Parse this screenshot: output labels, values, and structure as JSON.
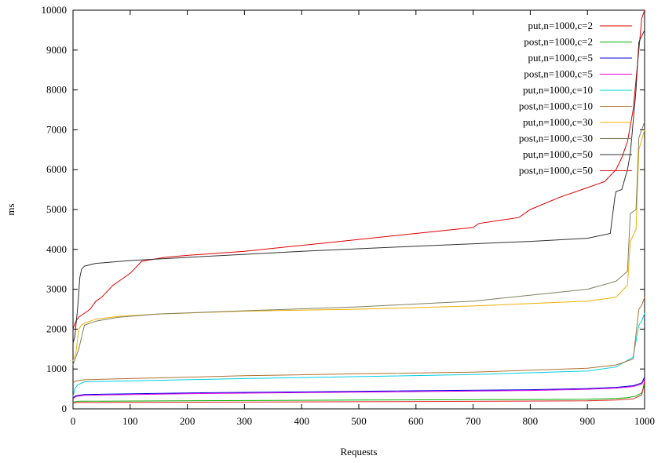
{
  "chart_data": {
    "type": "line",
    "title": "",
    "xlabel": "Requests",
    "ylabel": "ms",
    "xlim": [
      0,
      1000
    ],
    "ylim": [
      0,
      10000
    ],
    "xticks": [
      0,
      100,
      200,
      300,
      400,
      500,
      600,
      700,
      800,
      900,
      1000
    ],
    "yticks": [
      0,
      1000,
      2000,
      3000,
      4000,
      5000,
      6000,
      7000,
      8000,
      9000,
      10000
    ],
    "grid": false,
    "legend_position": "top-right",
    "series": [
      {
        "name": "put,n=1000,c=2",
        "color": "#e00000",
        "x": [
          0,
          5,
          10,
          20,
          30,
          40,
          50,
          70,
          90,
          100,
          120,
          140,
          160,
          200,
          300,
          400,
          500,
          600,
          700,
          710,
          780,
          800,
          850,
          900,
          930,
          950,
          960,
          970,
          980,
          990,
          995,
          1000
        ],
        "y": [
          2000,
          2200,
          2300,
          2400,
          2500,
          2700,
          2800,
          3100,
          3300,
          3400,
          3700,
          3750,
          3800,
          3850,
          3950,
          4100,
          4250,
          4400,
          4550,
          4650,
          4800,
          5000,
          5300,
          5550,
          5700,
          6000,
          6300,
          6700,
          7500,
          9000,
          9800,
          10000
        ]
      },
      {
        "name": "post,n=1000,c=2",
        "color": "#00b000",
        "x": [
          0,
          10,
          500,
          900,
          950,
          970,
          985,
          995,
          1000
        ],
        "y": [
          170,
          190,
          220,
          240,
          260,
          280,
          320,
          400,
          600
        ]
      },
      {
        "name": "put,n=1000,c=5",
        "color": "#0000e0",
        "x": [
          0,
          5,
          20,
          200,
          500,
          800,
          900,
          950,
          980,
          995,
          1000
        ],
        "y": [
          280,
          330,
          360,
          400,
          440,
          480,
          510,
          540,
          580,
          650,
          800
        ]
      },
      {
        "name": "post,n=1000,c=5",
        "color": "#e000e0",
        "x": [
          0,
          5,
          20,
          200,
          500,
          800,
          900,
          950,
          980,
          995,
          1000
        ],
        "y": [
          260,
          310,
          340,
          380,
          420,
          460,
          490,
          520,
          560,
          620,
          750
        ]
      },
      {
        "name": "put,n=1000,c=10",
        "color": "#00d0e0",
        "x": [
          0,
          3,
          8,
          20,
          100,
          300,
          500,
          700,
          900,
          950,
          980,
          990,
          995,
          1000
        ],
        "y": [
          300,
          500,
          600,
          680,
          700,
          760,
          810,
          860,
          950,
          1050,
          1300,
          2100,
          2200,
          2400
        ]
      },
      {
        "name": "post,n=1000,c=10",
        "color": "#b07030",
        "x": [
          0,
          5,
          20,
          100,
          300,
          500,
          700,
          900,
          950,
          980,
          990,
          995,
          1000
        ],
        "y": [
          650,
          700,
          730,
          760,
          830,
          880,
          920,
          1020,
          1100,
          1250,
          2500,
          2600,
          2800
        ]
      },
      {
        "name": "put,n=1000,c=30",
        "color": "#f0b000",
        "x": [
          0,
          5,
          10,
          15,
          20,
          40,
          80,
          150,
          300,
          500,
          700,
          900,
          950,
          970,
          975,
          985,
          990,
          1000
        ],
        "y": [
          1200,
          1400,
          2000,
          2100,
          2150,
          2250,
          2320,
          2380,
          2450,
          2500,
          2580,
          2700,
          2800,
          3100,
          4200,
          4500,
          6500,
          7000
        ]
      },
      {
        "name": "post,n=1000,c=30",
        "color": "#808060",
        "x": [
          0,
          5,
          10,
          15,
          20,
          40,
          80,
          150,
          300,
          500,
          700,
          900,
          950,
          970,
          975,
          985,
          990,
          1000
        ],
        "y": [
          1100,
          1300,
          1500,
          1800,
          2100,
          2200,
          2300,
          2380,
          2460,
          2560,
          2700,
          3000,
          3200,
          3450,
          4900,
          5000,
          6800,
          7200
        ]
      },
      {
        "name": "put,n=1000,c=50",
        "color": "#303030",
        "x": [
          0,
          3,
          8,
          12,
          15,
          20,
          40,
          100,
          200,
          400,
          600,
          800,
          900,
          940,
          948,
          950,
          960,
          970,
          975,
          985,
          990,
          1000
        ],
        "y": [
          1650,
          1800,
          2500,
          3300,
          3500,
          3580,
          3650,
          3720,
          3800,
          3950,
          4080,
          4200,
          4280,
          4400,
          5300,
          5450,
          5500,
          6000,
          6400,
          8000,
          9200,
          9500
        ]
      },
      {
        "name": "post,n=1000,c=50",
        "color": "#e02020",
        "x": [
          0,
          10,
          500,
          900,
          950,
          980,
          995,
          1000
        ],
        "y": [
          150,
          160,
          180,
          200,
          220,
          250,
          350,
          700
        ]
      }
    ]
  }
}
